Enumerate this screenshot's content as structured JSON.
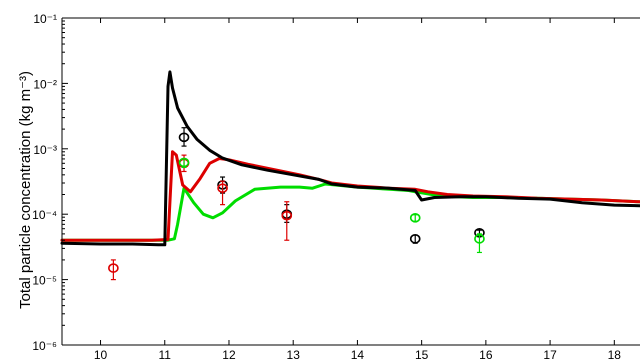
{
  "chart_data": {
    "type": "line",
    "title": "",
    "xlabel": "",
    "ylabel": "Total particle concentration  (kg m⁻³)",
    "xlim": [
      9.4,
      18.4
    ],
    "ylim": [
      1e-06,
      0.1
    ],
    "yscale": "log",
    "xticks": [
      10,
      11,
      12,
      13,
      14,
      15,
      16,
      17,
      18
    ],
    "yticks": [
      {
        "value": 1e-06,
        "label": "10⁻⁶"
      },
      {
        "value": 1e-05,
        "label": "10⁻⁵"
      },
      {
        "value": 0.0001,
        "label": "10⁻⁴"
      },
      {
        "value": 0.001,
        "label": "10⁻³"
      },
      {
        "value": 0.01,
        "label": "10⁻²"
      },
      {
        "value": 0.1,
        "label": "10⁻¹"
      }
    ],
    "grid": false,
    "series": [
      {
        "color": "#00dd00",
        "width": 3,
        "x": [
          9.4,
          10.8,
          11.05,
          11.15,
          11.2,
          11.3,
          11.45,
          11.6,
          11.75,
          11.9,
          12.1,
          12.4,
          12.8,
          13.1,
          13.3,
          13.5,
          14.0,
          14.5,
          14.8,
          14.9,
          15.3,
          15.8,
          16.3,
          16.8,
          17.3,
          17.8,
          18.4
        ],
        "y": [
          4e-05,
          4e-05,
          4e-05,
          4.2e-05,
          7e-05,
          0.00025,
          0.00015,
          0.0001,
          8.8e-05,
          0.000105,
          0.00016,
          0.00024,
          0.00026,
          0.00026,
          0.00025,
          0.00029,
          0.00026,
          0.00024,
          0.00023,
          0.00022,
          0.00019,
          0.00018,
          0.00018,
          0.000175,
          0.00017,
          0.000165,
          0.000155
        ]
      },
      {
        "color": "#dd0000",
        "width": 3,
        "x": [
          9.4,
          10.8,
          11.05,
          11.12,
          11.18,
          11.28,
          11.4,
          11.55,
          11.7,
          11.85,
          12.0,
          12.3,
          12.7,
          13.1,
          13.4,
          13.6,
          14.0,
          14.5,
          14.9,
          15.1,
          15.4,
          15.8,
          16.3,
          16.8,
          17.3,
          17.8,
          18.4
        ],
        "y": [
          4e-05,
          4e-05,
          4.1e-05,
          0.0009,
          0.0008,
          0.00028,
          0.00022,
          0.00035,
          0.0006,
          0.00071,
          0.00068,
          0.00058,
          0.00048,
          0.0004,
          0.00034,
          0.0003,
          0.00027,
          0.00025,
          0.00024,
          0.00022,
          0.0002,
          0.00019,
          0.000185,
          0.000175,
          0.00017,
          0.000165,
          0.000155
        ]
      },
      {
        "color": "#000000",
        "width": 3,
        "x": [
          9.4,
          10.0,
          10.5,
          10.9,
          11.0,
          11.05,
          11.08,
          11.12,
          11.2,
          11.35,
          11.5,
          11.7,
          11.9,
          12.2,
          12.6,
          13.0,
          13.4,
          13.6,
          14.0,
          14.5,
          14.9,
          15.0,
          15.2,
          15.6,
          16.0,
          16.5,
          17.0,
          17.5,
          18.0,
          18.4
        ],
        "y": [
          3.6e-05,
          3.5e-05,
          3.5e-05,
          3.4e-05,
          3.4e-05,
          0.009,
          0.015,
          0.0085,
          0.0042,
          0.0022,
          0.0014,
          0.00095,
          0.00072,
          0.00057,
          0.00047,
          0.0004,
          0.00034,
          0.00029,
          0.00026,
          0.00025,
          0.00023,
          0.000165,
          0.00018,
          0.000185,
          0.000185,
          0.000175,
          0.00017,
          0.00015,
          0.000138,
          0.000135
        ]
      }
    ],
    "points": [
      {
        "x": 10.2,
        "y": 1.5e-05,
        "low": 1e-05,
        "high": 2e-05,
        "color": "#dd0000"
      },
      {
        "x": 11.3,
        "y": 0.0006,
        "low": 0.00045,
        "high": 0.0008,
        "color": "#dd0000"
      },
      {
        "x": 11.3,
        "y": 0.0015,
        "low": 0.0011,
        "high": 0.0021,
        "color": "#000000"
      },
      {
        "x": 11.3,
        "y": 0.00062,
        "low": 0.00052,
        "high": 0.0007,
        "color": "#00dd00"
      },
      {
        "x": 11.9,
        "y": 0.00028,
        "low": 0.00021,
        "high": 0.00037,
        "color": "#000000"
      },
      {
        "x": 11.9,
        "y": 0.00025,
        "low": 0.00014,
        "high": 0.00032,
        "color": "#dd0000"
      },
      {
        "x": 12.9,
        "y": 0.0001,
        "low": 7.5e-05,
        "high": 0.00014,
        "color": "#000000"
      },
      {
        "x": 12.9,
        "y": 9.5e-05,
        "low": 4e-05,
        "high": 0.000155,
        "color": "#dd0000"
      },
      {
        "x": 14.9,
        "y": 4.2e-05,
        "low": 3.6e-05,
        "high": 4.8e-05,
        "color": "#000000"
      },
      {
        "x": 14.9,
        "y": 8.8e-05,
        "low": 7.8e-05,
        "high": 9.8e-05,
        "color": "#00dd00"
      },
      {
        "x": 15.9,
        "y": 5.2e-05,
        "low": 4.7e-05,
        "high": 5.7e-05,
        "color": "#000000"
      },
      {
        "x": 15.9,
        "y": 4.2e-05,
        "low": 2.6e-05,
        "high": 5e-05,
        "color": "#00dd00"
      }
    ]
  }
}
